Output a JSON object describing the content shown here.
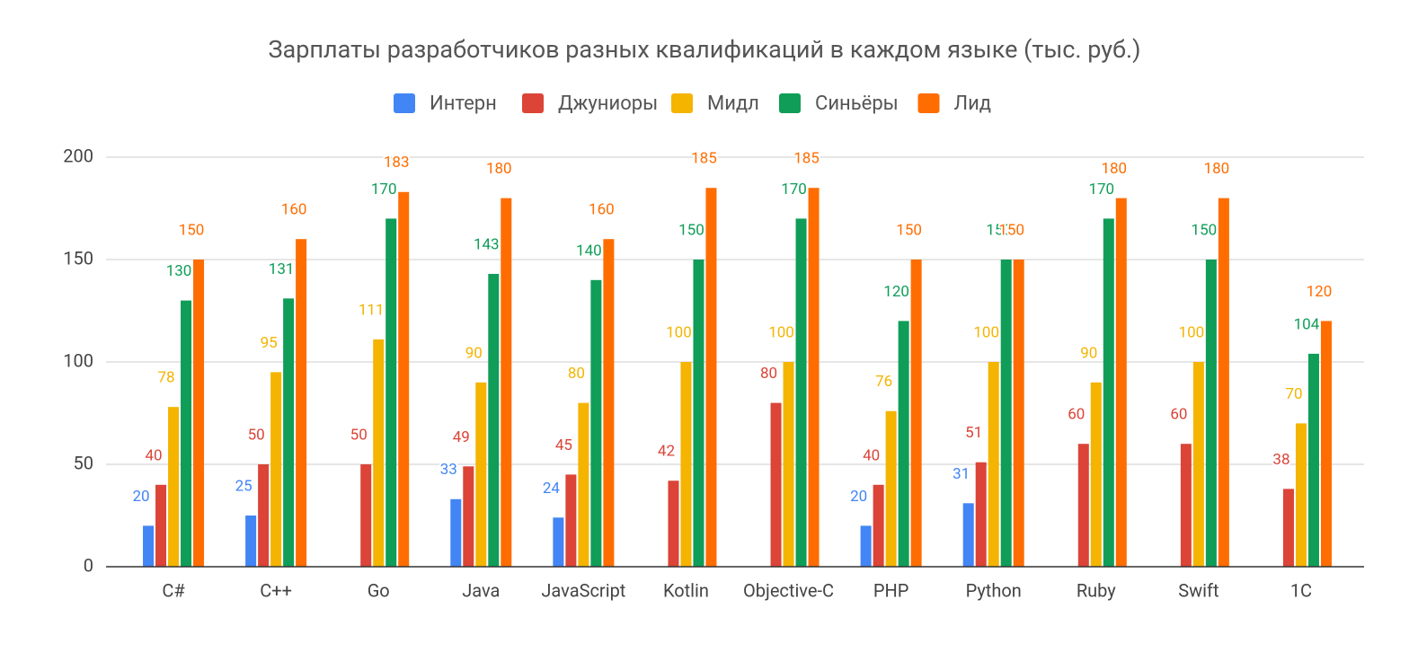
{
  "chart_data": {
    "type": "bar",
    "title": "Зарплаты разработчиков разных квалификаций в каждом языке (тыс. руб.)",
    "categories": [
      "C#",
      "C++",
      "Go",
      "Java",
      "JavaScript",
      "Kotlin",
      "Objective-C",
      "PHP",
      "Python",
      "Ruby",
      "Swift",
      "1C"
    ],
    "series": [
      {
        "name": "Интерн",
        "color": "#4285f4",
        "values": [
          20,
          25,
          null,
          33,
          24,
          null,
          null,
          20,
          31,
          null,
          null,
          null
        ]
      },
      {
        "name": "Джуниоры",
        "color": "#db4437",
        "values": [
          40,
          50,
          50,
          49,
          45,
          42,
          80,
          40,
          51,
          60,
          60,
          38
        ]
      },
      {
        "name": "Мидл",
        "color": "#f4b400",
        "values": [
          78,
          95,
          111,
          90,
          80,
          100,
          100,
          76,
          100,
          90,
          100,
          70
        ]
      },
      {
        "name": "Синьёры",
        "color": "#0f9d58",
        "values": [
          130,
          131,
          170,
          143,
          140,
          150,
          170,
          120,
          150,
          170,
          150,
          104
        ]
      },
      {
        "name": "Лид",
        "color": "#ff6d01",
        "values": [
          150,
          160,
          183,
          180,
          160,
          185,
          185,
          150,
          150,
          180,
          180,
          120
        ]
      }
    ],
    "ylim": [
      0,
      200
    ],
    "yticks": [
      0,
      50,
      100,
      150,
      200
    ],
    "grid": true,
    "legend": "top"
  }
}
